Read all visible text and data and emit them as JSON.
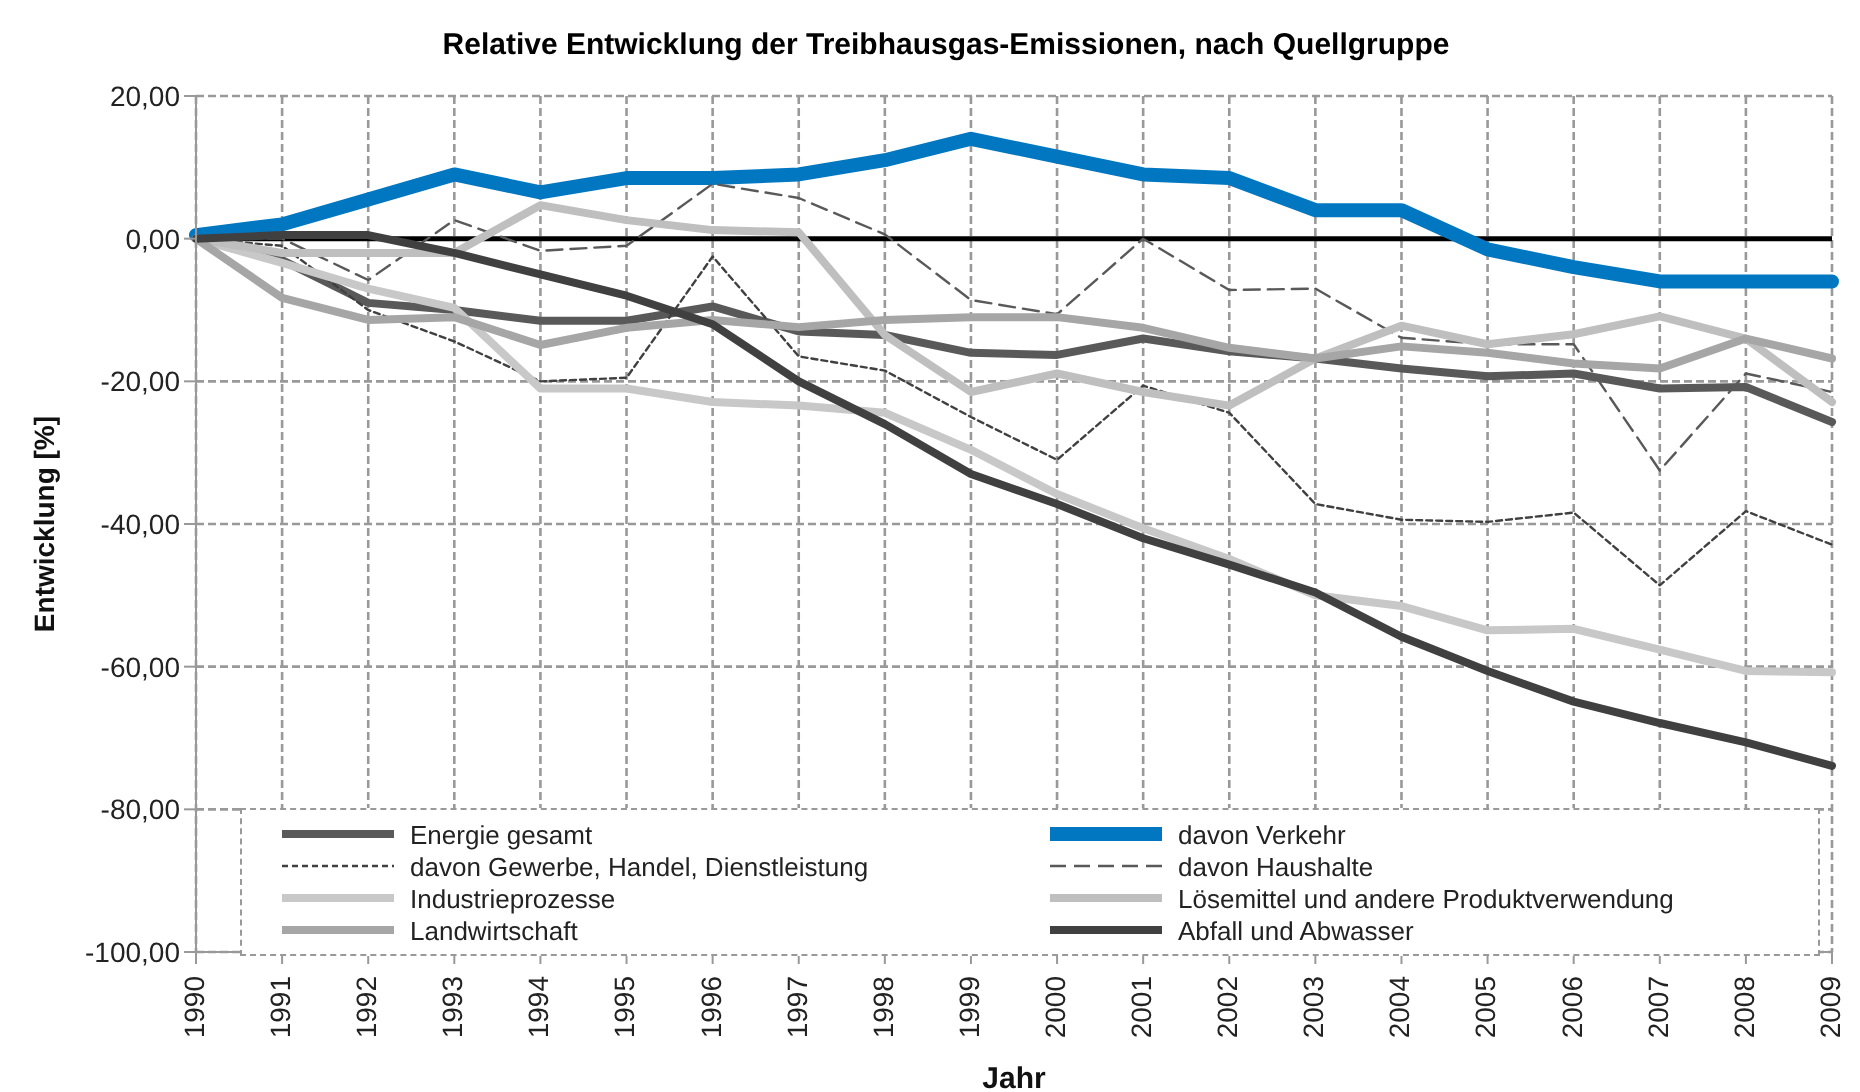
{
  "chart_data": {
    "type": "line",
    "title": "Relative Entwicklung der Treibhausgas-Emissionen, nach Quellgruppe",
    "xlabel": "Jahr",
    "ylabel": "Entwicklung [%]",
    "categories": [
      "1990",
      "1991",
      "1992",
      "1993",
      "1994",
      "1995",
      "1996",
      "1997",
      "1998",
      "1999",
      "2000",
      "2001",
      "2002",
      "2003",
      "2004",
      "2005",
      "2006",
      "2007",
      "2008",
      "2009"
    ],
    "ylim": [
      -100,
      20
    ],
    "yticks": [
      {
        "value": -100,
        "label": "-100,00"
      },
      {
        "value": -80,
        "label": "-80,00"
      },
      {
        "value": -60,
        "label": "-60,00"
      },
      {
        "value": -40,
        "label": "-40,00"
      },
      {
        "value": -20,
        "label": "-20,00"
      },
      {
        "value": 0,
        "label": "0,00"
      },
      {
        "value": 20,
        "label": "20,00"
      }
    ],
    "grid": true,
    "legend": "bottom",
    "marker": "none",
    "ref_lines": [
      {
        "axis": "y",
        "value": 0,
        "color": "#000000"
      }
    ],
    "series": [
      {
        "name": "Energie gesamt",
        "color": "#595959",
        "line_style": "solid",
        "values": [
          0,
          -3,
          -9,
          -10,
          -11.5,
          -11.5,
          -9.5,
          -13,
          -13.5,
          -16,
          -16.3,
          -14,
          -15.8,
          -16.8,
          -18.2,
          -19.3,
          -18.9,
          -21,
          -20.8,
          -25.7
        ]
      },
      {
        "name": "davon Verkehr",
        "color": "#0077c0",
        "line_style": "solid",
        "values": [
          0.5,
          2,
          5.5,
          9,
          6.5,
          8.5,
          8.5,
          9,
          11,
          14,
          11.5,
          9,
          8.5,
          4,
          4,
          -1.5,
          -4,
          -6,
          -6,
          -6
        ]
      },
      {
        "name": "davon Gewerbe, Handel, Dienstleistung",
        "color": "#404040",
        "line_style": "dotted",
        "values": [
          0,
          -1,
          -10,
          -14.4,
          -20,
          -19.5,
          -2.5,
          -16.5,
          -18.5,
          -25,
          -31,
          -20.6,
          -24.4,
          -37.2,
          -39.4,
          -39.7,
          -38.4,
          -48.6,
          -38.2,
          -42.9
        ]
      },
      {
        "name": "davon Haushalte",
        "color": "#595959",
        "line_style": "dashed",
        "values": [
          0,
          0,
          -5.8,
          2.6,
          -1.7,
          -1,
          7.7,
          5.7,
          0.6,
          -8.6,
          -10.6,
          0,
          -7.2,
          -7,
          -13.9,
          -14.8,
          -14.8,
          -32.5,
          -18.9,
          -21.5
        ]
      },
      {
        "name": "Industrieprozesse",
        "color": "#c8c8c8",
        "line_style": "solid",
        "values": [
          0,
          -3.4,
          -7,
          -9.7,
          -21,
          -21,
          -22.9,
          -23.4,
          -24.4,
          -29.6,
          -35.8,
          -40.6,
          -44.9,
          -50,
          -51.5,
          -54.9,
          -54.7,
          -57.6,
          -60.6,
          -60.8
        ]
      },
      {
        "name": "Lösemittel und andere Produktverwendung",
        "color": "#bfbfbf",
        "line_style": "solid",
        "values": [
          0,
          -2,
          -2,
          -2,
          4.7,
          2.6,
          1.2,
          0.9,
          -13.5,
          -21.5,
          -18.9,
          -21.5,
          -23.4,
          -16.8,
          -12.2,
          -14.8,
          -13.4,
          -10.9,
          -14,
          -22.9
        ]
      },
      {
        "name": "Landwirtschaft",
        "color": "#a6a6a6",
        "line_style": "solid",
        "values": [
          0,
          -8.3,
          -11.4,
          -11,
          -14.9,
          -12.5,
          -11.4,
          -12.4,
          -11.4,
          -11,
          -11,
          -12.5,
          -15.3,
          -16.8,
          -15.1,
          -16,
          -17.5,
          -18.2,
          -14,
          -16.8
        ]
      },
      {
        "name": "Abfall und Abwasser",
        "color": "#404040",
        "line_style": "solid",
        "values": [
          0,
          0.5,
          0.5,
          -2,
          -5,
          -8,
          -12,
          -20,
          -26,
          -33,
          -37.2,
          -42,
          -45.7,
          -49.6,
          -55.8,
          -60.6,
          -64.9,
          -67.9,
          -70.6,
          -73.9
        ]
      }
    ]
  }
}
